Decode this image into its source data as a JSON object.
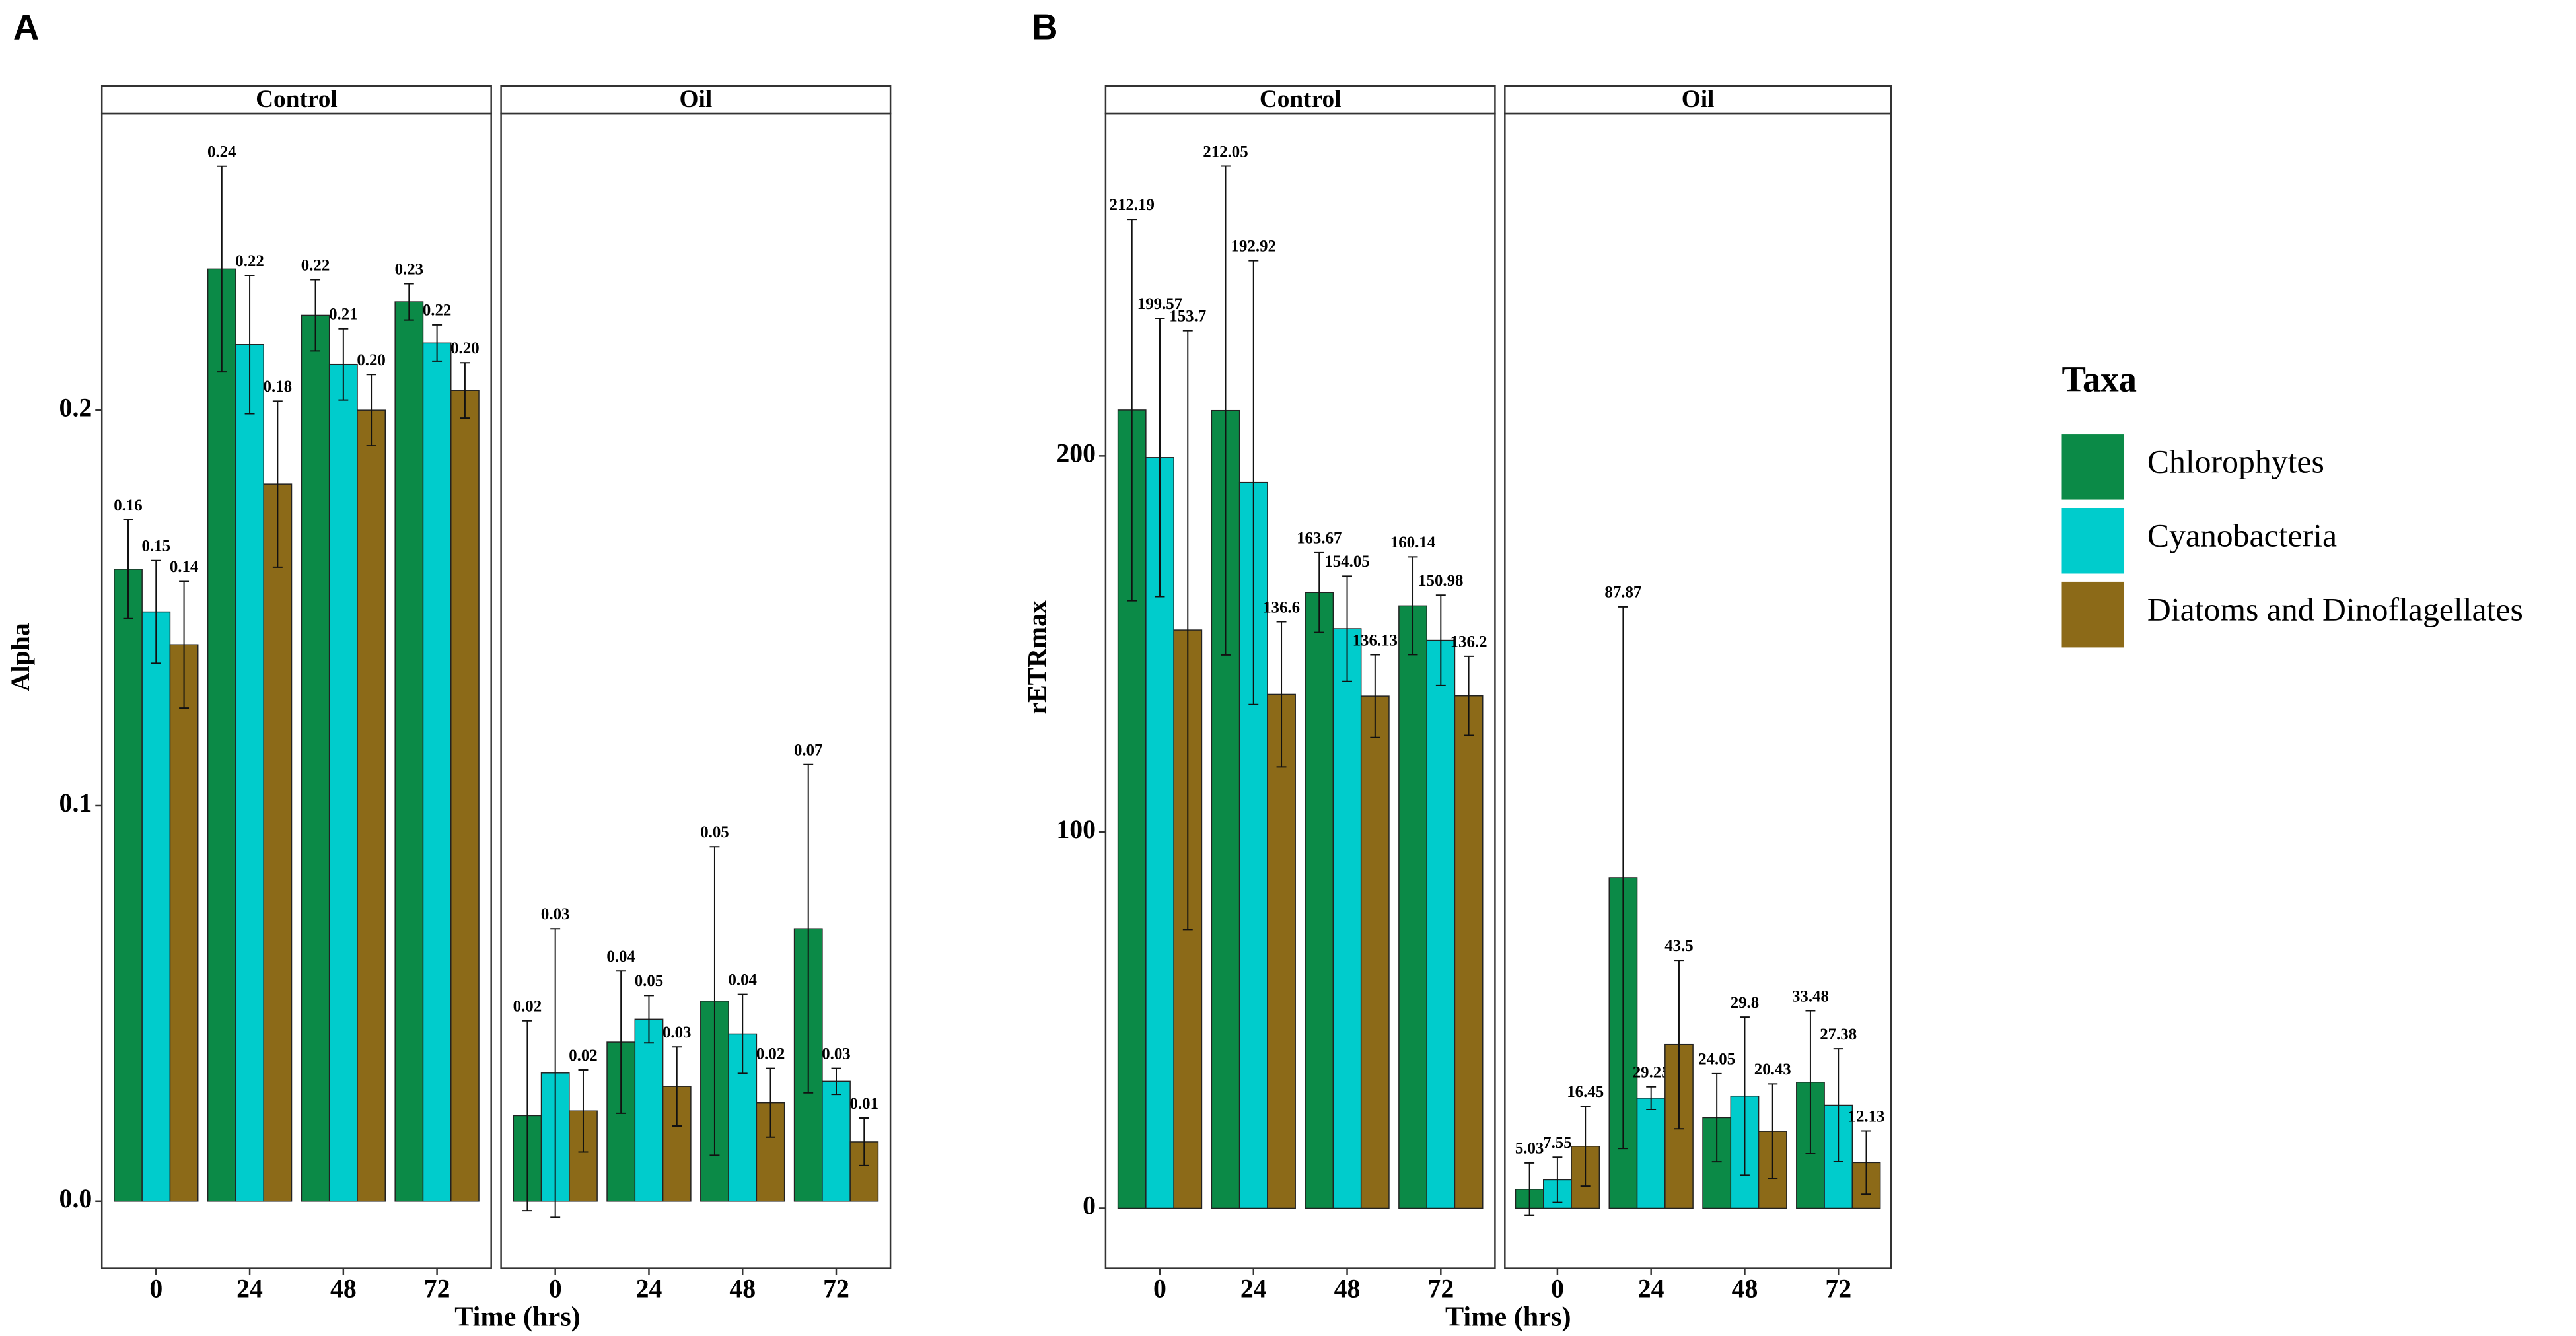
{
  "legend": {
    "title": "Taxa",
    "entries": [
      {
        "name": "Chlorophytes",
        "color": "#0b8a47"
      },
      {
        "name": "Cyanobacteria",
        "color": "#00cccc"
      },
      {
        "name": "Diatoms and Dinoflagellates",
        "color": "#8c6a18"
      }
    ]
  },
  "chart_data": [
    {
      "type": "bar",
      "panel": "A",
      "ylabel": "Alpha",
      "xlabel": "Time (hrs)",
      "ylim": [
        -0.017,
        0.275
      ],
      "yticks": [
        {
          "value": 0,
          "label": "0.0"
        },
        0.1,
        0.2
      ],
      "categories": [
        "0",
        "24",
        "48",
        "72"
      ],
      "facets": [
        {
          "title": "Control",
          "series": [
            {
              "values": [
                0.1598,
                0.2357,
                0.224,
                0.2274
              ],
              "errors": [
                0.0125,
                0.026,
                0.009,
                0.0046
              ],
              "value_labels": [
                "0.16",
                "0.24",
                "0.22",
                "0.23"
              ]
            },
            {
              "values": [
                0.149,
                0.2166,
                0.2116,
                0.217
              ],
              "errors": [
                0.013,
                0.0175,
                0.009,
                0.0046
              ],
              "value_labels": [
                "0.15",
                "0.22",
                "0.21",
                "0.22"
              ]
            },
            {
              "values": [
                0.1407,
                0.1813,
                0.2,
                0.205
              ],
              "errors": [
                0.016,
                0.021,
                0.009,
                0.007
              ],
              "value_labels": [
                "0.14",
                "0.18",
                "0.20",
                "0.20"
              ]
            }
          ]
        },
        {
          "title": "Oil",
          "series": [
            {
              "values": [
                0.0216,
                0.0402,
                0.0506,
                0.0689
              ],
              "errors": [
                0.024,
                0.018,
                0.039,
                0.0415
              ],
              "value_labels": [
                "0.02",
                "0.04",
                "0.05",
                "0.07"
              ]
            },
            {
              "values": [
                0.0324,
                0.046,
                0.0423,
                0.0303
              ],
              "errors": [
                0.0365,
                0.006,
                0.01,
                0.0033
              ],
              "value_labels": [
                "0.03",
                "0.05",
                "0.04",
                "0.03"
              ]
            },
            {
              "values": [
                0.0228,
                0.029,
                0.0249,
                0.015
              ],
              "errors": [
                0.0104,
                0.01,
                0.0087,
                0.006
              ],
              "value_labels": [
                "0.02",
                "0.03",
                "0.02",
                "0.01"
              ]
            }
          ]
        }
      ]
    },
    {
      "type": "bar",
      "panel": "B",
      "ylabel": "rETRmax",
      "xlabel": "Time (hrs)",
      "ylim": [
        -16,
        291
      ],
      "yticks": [
        0,
        100,
        200
      ],
      "categories": [
        "0",
        "24",
        "48",
        "72"
      ],
      "facets": [
        {
          "title": "Control",
          "series": [
            {
              "values": [
                212.19,
                212.05,
                163.67,
                160.14
              ],
              "errors": [
                50.7,
                65,
                10.6,
                13
              ]
            },
            {
              "values": [
                199.57,
                192.92,
                154.05,
                150.98
              ],
              "errors": [
                37,
                59,
                14,
                12
              ]
            },
            {
              "values": [
                153.7,
                136.6,
                136.13,
                136.2
              ],
              "errors": [
                79.6,
                19.3,
                11,
                10.5
              ]
            }
          ]
        },
        {
          "title": "Oil",
          "series": [
            {
              "values": [
                5.03,
                87.87,
                24.05,
                33.48
              ],
              "errors": [
                7,
                72,
                11.7,
                19
              ]
            },
            {
              "values": [
                7.55,
                29.25,
                29.8,
                27.38
              ],
              "errors": [
                6,
                3,
                21,
                15
              ]
            },
            {
              "values": [
                16.45,
                43.5,
                20.43,
                12.13
              ],
              "errors": [
                10.6,
                22.4,
                12.6,
                8.4
              ]
            }
          ]
        }
      ]
    }
  ]
}
